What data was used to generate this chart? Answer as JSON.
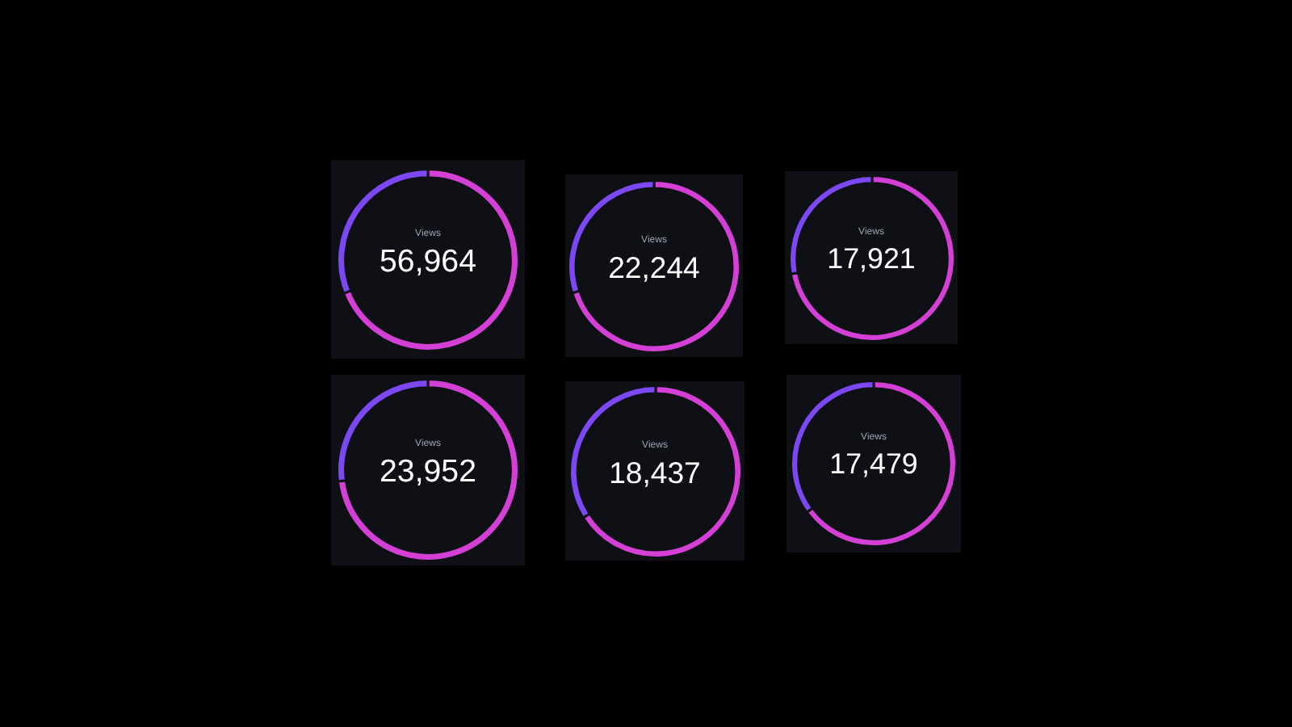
{
  "chart_data": [
    {
      "type": "donut",
      "title": "Views",
      "annotations": [
        "56,964"
      ],
      "categories": [
        null,
        null
      ],
      "values": [
        69,
        31
      ],
      "colors": [
        "#d440d6",
        "#7b48f4"
      ]
    },
    {
      "type": "donut",
      "title": "Views",
      "annotations": [
        "22,244"
      ],
      "categories": [
        null,
        null
      ],
      "values": [
        70,
        30
      ],
      "colors": [
        "#d440d6",
        "#7b48f4"
      ]
    },
    {
      "type": "donut",
      "title": "Views",
      "annotations": [
        "17,921"
      ],
      "categories": [
        null,
        null
      ],
      "values": [
        72,
        28
      ],
      "colors": [
        "#d440d6",
        "#7b48f4"
      ]
    },
    {
      "type": "donut",
      "title": "Views",
      "annotations": [
        "23,952"
      ],
      "categories": [
        null,
        null
      ],
      "values": [
        73,
        27
      ],
      "colors": [
        "#d440d6",
        "#7b48f4"
      ]
    },
    {
      "type": "donut",
      "title": "Views",
      "annotations": [
        "18,437"
      ],
      "categories": [
        null,
        null
      ],
      "values": [
        66,
        34
      ],
      "colors": [
        "#d440d6",
        "#7b48f4"
      ]
    },
    {
      "type": "donut",
      "title": "Views",
      "annotations": [
        "17,479"
      ],
      "categories": [
        null,
        null
      ],
      "values": [
        65,
        35
      ],
      "colors": [
        "#d440d6",
        "#7b48f4"
      ]
    }
  ]
}
